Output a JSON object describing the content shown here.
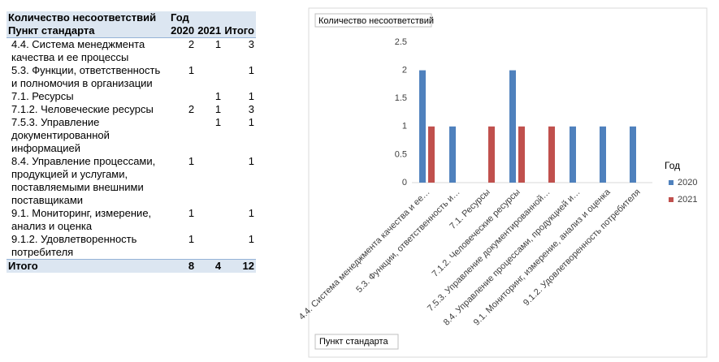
{
  "table": {
    "header": [
      [
        "Количество несоответствий",
        "Год"
      ],
      [
        "Пункт стандарта",
        "2020",
        "2021",
        "Итого"
      ]
    ],
    "rows": [
      [
        "4.4. Система менеджмента качества и ее процессы",
        2,
        1,
        3
      ],
      [
        "5.3. Функции, ответственность и полномочия в организации",
        1,
        null,
        1
      ],
      [
        "7.1. Ресурсы",
        null,
        1,
        1
      ],
      [
        "7.1.2. Человеческие ресурсы",
        2,
        1,
        3
      ],
      [
        "7.5.3. Управление документированной информацией",
        null,
        1,
        1
      ],
      [
        "8.4. Управление процессами, продукцией и услугами, поставляемыми внешними поставщиками",
        1,
        null,
        1
      ],
      [
        "9.1. Мониторинг, измерение, анализ и оценка",
        1,
        null,
        1
      ],
      [
        "9.1.2. Удовлетворенность потребителя",
        1,
        null,
        1
      ]
    ],
    "total": [
      "Итого",
      8,
      4,
      12
    ]
  },
  "chart_data": {
    "type": "bar",
    "value_field": "Количество несоответствий",
    "axis_field": "Пункт стандарта",
    "legend_title": "Год",
    "legend_position": "right",
    "categories": [
      "4.4. Система менеджмента качества и ее…",
      "5.3. Функции, ответственность и…",
      "7.1. Ресурсы",
      "7.1.2. Человеческие ресурсы",
      "7.5.3. Управление документированной…",
      "8.4. Управление процессами, продукцией и…",
      "9.1. Мониторинг, измерение, анализ и оценка",
      "9.1.2. Удовлетворенность потребителя"
    ],
    "series": [
      {
        "name": "2020",
        "color": "#4f81bd",
        "values": [
          2,
          1,
          null,
          2,
          null,
          1,
          1,
          1
        ]
      },
      {
        "name": "2021",
        "color": "#c0504d",
        "values": [
          1,
          null,
          1,
          1,
          1,
          null,
          null,
          null
        ]
      }
    ],
    "ylim": [
      0,
      2.5
    ],
    "yticks": [
      0,
      0.5,
      1,
      1.5,
      2,
      2.5
    ],
    "grid": false
  }
}
